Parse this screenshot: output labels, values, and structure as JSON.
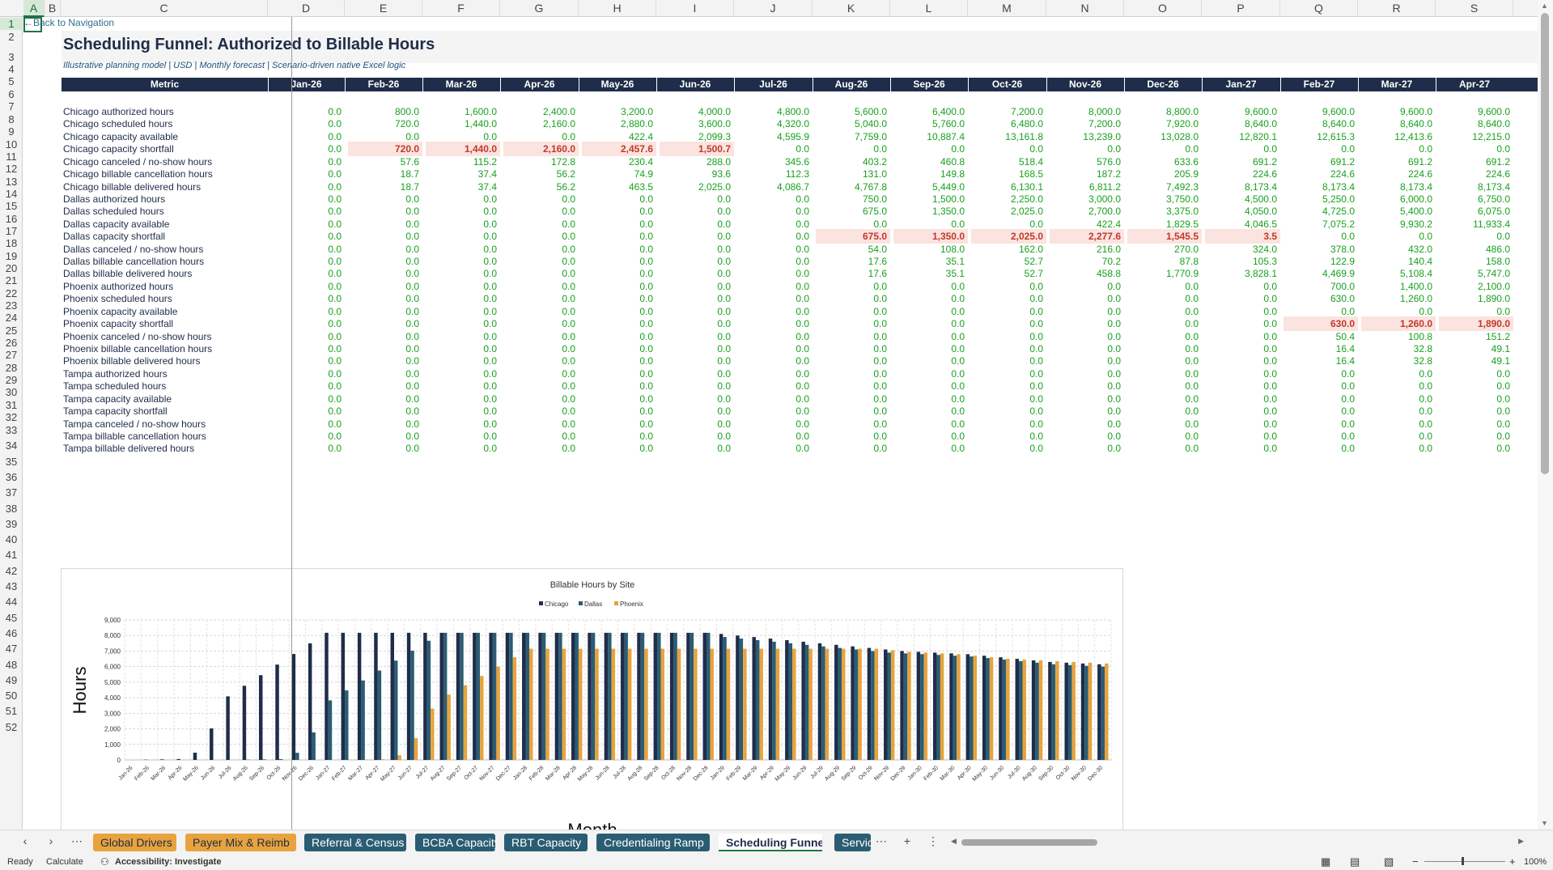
{
  "columns": [
    "A",
    "B",
    "C",
    "D",
    "E",
    "F",
    "G",
    "H",
    "I",
    "J",
    "K",
    "L",
    "M",
    "N",
    "O",
    "P",
    "Q",
    "R",
    "S"
  ],
  "back_link": "←Back to Navigation",
  "title": "Scheduling Funnel: Authorized to Billable Hours",
  "subtitle": "Illustrative planning model | USD | Monthly forecast | Scenario-driven native Excel logic",
  "table": {
    "metric_header": "Metric",
    "months": [
      "Jan-26",
      "Feb-26",
      "Mar-26",
      "Apr-26",
      "May-26",
      "Jun-26",
      "Jul-26",
      "Aug-26",
      "Sep-26",
      "Oct-26",
      "Nov-26",
      "Dec-26",
      "Jan-27",
      "Feb-27",
      "Mar-27",
      "Apr-27"
    ],
    "rows": [
      {
        "label": "Chicago authorized hours",
        "values": [
          "0.0",
          "800.0",
          "1,600.0",
          "2,400.0",
          "3,200.0",
          "4,000.0",
          "4,800.0",
          "5,600.0",
          "6,400.0",
          "7,200.0",
          "8,000.0",
          "8,800.0",
          "9,600.0",
          "9,600.0",
          "9,600.0",
          "9,600.0"
        ],
        "highlight": []
      },
      {
        "label": "Chicago scheduled hours",
        "values": [
          "0.0",
          "720.0",
          "1,440.0",
          "2,160.0",
          "2,880.0",
          "3,600.0",
          "4,320.0",
          "5,040.0",
          "5,760.0",
          "6,480.0",
          "7,200.0",
          "7,920.0",
          "8,640.0",
          "8,640.0",
          "8,640.0",
          "8,640.0"
        ],
        "highlight": []
      },
      {
        "label": "Chicago capacity available",
        "values": [
          "0.0",
          "0.0",
          "0.0",
          "0.0",
          "422.4",
          "2,099.3",
          "4,595.9",
          "7,759.0",
          "10,887.4",
          "13,161.8",
          "13,239.0",
          "13,028.0",
          "12,820.1",
          "12,615.3",
          "12,413.6",
          "12,215.0"
        ],
        "highlight": []
      },
      {
        "label": "Chicago capacity shortfall",
        "values": [
          "0.0",
          "720.0",
          "1,440.0",
          "2,160.0",
          "2,457.6",
          "1,500.7",
          "0.0",
          "0.0",
          "0.0",
          "0.0",
          "0.0",
          "0.0",
          "0.0",
          "0.0",
          "0.0",
          "0.0"
        ],
        "highlight": [
          1,
          2,
          3,
          4,
          5
        ]
      },
      {
        "label": "Chicago canceled / no-show hours",
        "values": [
          "0.0",
          "57.6",
          "115.2",
          "172.8",
          "230.4",
          "288.0",
          "345.6",
          "403.2",
          "460.8",
          "518.4",
          "576.0",
          "633.6",
          "691.2",
          "691.2",
          "691.2",
          "691.2"
        ],
        "highlight": []
      },
      {
        "label": "Chicago billable cancellation hours",
        "values": [
          "0.0",
          "18.7",
          "37.4",
          "56.2",
          "74.9",
          "93.6",
          "112.3",
          "131.0",
          "149.8",
          "168.5",
          "187.2",
          "205.9",
          "224.6",
          "224.6",
          "224.6",
          "224.6"
        ],
        "highlight": []
      },
      {
        "label": "Chicago billable delivered hours",
        "values": [
          "0.0",
          "18.7",
          "37.4",
          "56.2",
          "463.5",
          "2,025.0",
          "4,086.7",
          "4,767.8",
          "5,449.0",
          "6,130.1",
          "6,811.2",
          "7,492.3",
          "8,173.4",
          "8,173.4",
          "8,173.4",
          "8,173.4"
        ],
        "highlight": []
      },
      {
        "label": "Dallas authorized hours",
        "values": [
          "0.0",
          "0.0",
          "0.0",
          "0.0",
          "0.0",
          "0.0",
          "0.0",
          "750.0",
          "1,500.0",
          "2,250.0",
          "3,000.0",
          "3,750.0",
          "4,500.0",
          "5,250.0",
          "6,000.0",
          "6,750.0"
        ],
        "highlight": []
      },
      {
        "label": "Dallas scheduled hours",
        "values": [
          "0.0",
          "0.0",
          "0.0",
          "0.0",
          "0.0",
          "0.0",
          "0.0",
          "675.0",
          "1,350.0",
          "2,025.0",
          "2,700.0",
          "3,375.0",
          "4,050.0",
          "4,725.0",
          "5,400.0",
          "6,075.0"
        ],
        "highlight": []
      },
      {
        "label": "Dallas capacity available",
        "values": [
          "0.0",
          "0.0",
          "0.0",
          "0.0",
          "0.0",
          "0.0",
          "0.0",
          "0.0",
          "0.0",
          "0.0",
          "422.4",
          "1,829.5",
          "4,046.5",
          "7,075.2",
          "9,930.2",
          "11,933.4"
        ],
        "highlight": []
      },
      {
        "label": "Dallas capacity shortfall",
        "values": [
          "0.0",
          "0.0",
          "0.0",
          "0.0",
          "0.0",
          "0.0",
          "0.0",
          "675.0",
          "1,350.0",
          "2,025.0",
          "2,277.6",
          "1,545.5",
          "3.5",
          "0.0",
          "0.0",
          "0.0"
        ],
        "highlight": [
          7,
          8,
          9,
          10,
          11,
          12
        ]
      },
      {
        "label": "Dallas canceled / no-show hours",
        "values": [
          "0.0",
          "0.0",
          "0.0",
          "0.0",
          "0.0",
          "0.0",
          "0.0",
          "54.0",
          "108.0",
          "162.0",
          "216.0",
          "270.0",
          "324.0",
          "378.0",
          "432.0",
          "486.0"
        ],
        "highlight": []
      },
      {
        "label": "Dallas billable cancellation hours",
        "values": [
          "0.0",
          "0.0",
          "0.0",
          "0.0",
          "0.0",
          "0.0",
          "0.0",
          "17.6",
          "35.1",
          "52.7",
          "70.2",
          "87.8",
          "105.3",
          "122.9",
          "140.4",
          "158.0"
        ],
        "highlight": []
      },
      {
        "label": "Dallas billable delivered hours",
        "values": [
          "0.0",
          "0.0",
          "0.0",
          "0.0",
          "0.0",
          "0.0",
          "0.0",
          "17.6",
          "35.1",
          "52.7",
          "458.8",
          "1,770.9",
          "3,828.1",
          "4,469.9",
          "5,108.4",
          "5,747.0"
        ],
        "highlight": []
      },
      {
        "label": "Phoenix authorized hours",
        "values": [
          "0.0",
          "0.0",
          "0.0",
          "0.0",
          "0.0",
          "0.0",
          "0.0",
          "0.0",
          "0.0",
          "0.0",
          "0.0",
          "0.0",
          "0.0",
          "700.0",
          "1,400.0",
          "2,100.0"
        ],
        "highlight": []
      },
      {
        "label": "Phoenix scheduled hours",
        "values": [
          "0.0",
          "0.0",
          "0.0",
          "0.0",
          "0.0",
          "0.0",
          "0.0",
          "0.0",
          "0.0",
          "0.0",
          "0.0",
          "0.0",
          "0.0",
          "630.0",
          "1,260.0",
          "1,890.0"
        ],
        "highlight": []
      },
      {
        "label": "Phoenix capacity available",
        "values": [
          "0.0",
          "0.0",
          "0.0",
          "0.0",
          "0.0",
          "0.0",
          "0.0",
          "0.0",
          "0.0",
          "0.0",
          "0.0",
          "0.0",
          "0.0",
          "0.0",
          "0.0",
          "0.0"
        ],
        "highlight": []
      },
      {
        "label": "Phoenix capacity shortfall",
        "values": [
          "0.0",
          "0.0",
          "0.0",
          "0.0",
          "0.0",
          "0.0",
          "0.0",
          "0.0",
          "0.0",
          "0.0",
          "0.0",
          "0.0",
          "0.0",
          "630.0",
          "1,260.0",
          "1,890.0"
        ],
        "highlight": [
          13,
          14,
          15
        ]
      },
      {
        "label": "Phoenix canceled / no-show hours",
        "values": [
          "0.0",
          "0.0",
          "0.0",
          "0.0",
          "0.0",
          "0.0",
          "0.0",
          "0.0",
          "0.0",
          "0.0",
          "0.0",
          "0.0",
          "0.0",
          "50.4",
          "100.8",
          "151.2"
        ],
        "highlight": []
      },
      {
        "label": "Phoenix billable cancellation hours",
        "values": [
          "0.0",
          "0.0",
          "0.0",
          "0.0",
          "0.0",
          "0.0",
          "0.0",
          "0.0",
          "0.0",
          "0.0",
          "0.0",
          "0.0",
          "0.0",
          "16.4",
          "32.8",
          "49.1"
        ],
        "highlight": []
      },
      {
        "label": "Phoenix billable delivered hours",
        "values": [
          "0.0",
          "0.0",
          "0.0",
          "0.0",
          "0.0",
          "0.0",
          "0.0",
          "0.0",
          "0.0",
          "0.0",
          "0.0",
          "0.0",
          "0.0",
          "16.4",
          "32.8",
          "49.1"
        ],
        "highlight": []
      },
      {
        "label": "Tampa authorized hours",
        "values": [
          "0.0",
          "0.0",
          "0.0",
          "0.0",
          "0.0",
          "0.0",
          "0.0",
          "0.0",
          "0.0",
          "0.0",
          "0.0",
          "0.0",
          "0.0",
          "0.0",
          "0.0",
          "0.0"
        ],
        "highlight": []
      },
      {
        "label": "Tampa scheduled hours",
        "values": [
          "0.0",
          "0.0",
          "0.0",
          "0.0",
          "0.0",
          "0.0",
          "0.0",
          "0.0",
          "0.0",
          "0.0",
          "0.0",
          "0.0",
          "0.0",
          "0.0",
          "0.0",
          "0.0"
        ],
        "highlight": []
      },
      {
        "label": "Tampa capacity available",
        "values": [
          "0.0",
          "0.0",
          "0.0",
          "0.0",
          "0.0",
          "0.0",
          "0.0",
          "0.0",
          "0.0",
          "0.0",
          "0.0",
          "0.0",
          "0.0",
          "0.0",
          "0.0",
          "0.0"
        ],
        "highlight": []
      },
      {
        "label": "Tampa capacity shortfall",
        "values": [
          "0.0",
          "0.0",
          "0.0",
          "0.0",
          "0.0",
          "0.0",
          "0.0",
          "0.0",
          "0.0",
          "0.0",
          "0.0",
          "0.0",
          "0.0",
          "0.0",
          "0.0",
          "0.0"
        ],
        "highlight": []
      },
      {
        "label": "Tampa canceled / no-show hours",
        "values": [
          "0.0",
          "0.0",
          "0.0",
          "0.0",
          "0.0",
          "0.0",
          "0.0",
          "0.0",
          "0.0",
          "0.0",
          "0.0",
          "0.0",
          "0.0",
          "0.0",
          "0.0",
          "0.0"
        ],
        "highlight": []
      },
      {
        "label": "Tampa billable cancellation hours",
        "values": [
          "0.0",
          "0.0",
          "0.0",
          "0.0",
          "0.0",
          "0.0",
          "0.0",
          "0.0",
          "0.0",
          "0.0",
          "0.0",
          "0.0",
          "0.0",
          "0.0",
          "0.0",
          "0.0"
        ],
        "highlight": []
      },
      {
        "label": "Tampa billable delivered hours",
        "values": [
          "0.0",
          "0.0",
          "0.0",
          "0.0",
          "0.0",
          "0.0",
          "0.0",
          "0.0",
          "0.0",
          "0.0",
          "0.0",
          "0.0",
          "0.0",
          "0.0",
          "0.0",
          "0.0"
        ],
        "highlight": []
      }
    ]
  },
  "chart_data": {
    "type": "bar",
    "title": "Billable Hours by Site",
    "xlabel": "Month",
    "ylabel": "Hours",
    "ylim": [
      0,
      9000
    ],
    "yticks": [
      "0",
      "1,000",
      "2,000",
      "3,000",
      "4,000",
      "5,000",
      "6,000",
      "7,000",
      "8,000",
      "9,000"
    ],
    "grid": true,
    "legend": "top",
    "categories": [
      "Jan-26",
      "Feb-26",
      "Mar-26",
      "Apr-26",
      "May-26",
      "Jun-26",
      "Jul-26",
      "Aug-26",
      "Sep-26",
      "Oct-26",
      "Nov-26",
      "Dec-26",
      "Jan-27",
      "Feb-27",
      "Mar-27",
      "Apr-27",
      "May-27",
      "Jun-27",
      "Jul-27",
      "Aug-27",
      "Sep-27",
      "Oct-27",
      "Nov-27",
      "Dec-27",
      "Jan-28",
      "Feb-28",
      "Mar-28",
      "Apr-28",
      "May-28",
      "Jun-28",
      "Jul-28",
      "Aug-28",
      "Sep-28",
      "Oct-28",
      "Nov-28",
      "Dec-28",
      "Jan-29",
      "Feb-29",
      "Mar-29",
      "Apr-29",
      "May-29",
      "Jun-29",
      "Jul-29",
      "Aug-29",
      "Sep-29",
      "Oct-29",
      "Nov-29",
      "Dec-29",
      "Jan-30",
      "Feb-30",
      "Mar-30",
      "Apr-30",
      "May-30",
      "Jun-30",
      "Jul-30",
      "Aug-30",
      "Sep-30",
      "Oct-30",
      "Nov-30",
      "Dec-30"
    ],
    "series": [
      {
        "name": "Chicago",
        "color": "#1f2d4a",
        "values": [
          0,
          19,
          37,
          56,
          464,
          2025,
          4087,
          4768,
          5449,
          6130,
          6811,
          7492,
          8173,
          8173,
          8173,
          8173,
          8173,
          8173,
          8173,
          8173,
          8173,
          8173,
          8173,
          8173,
          8173,
          8173,
          8173,
          8173,
          8173,
          8173,
          8173,
          8173,
          8173,
          8173,
          8173,
          8173,
          8100,
          8000,
          7900,
          7800,
          7700,
          7600,
          7500,
          7400,
          7300,
          7200,
          7100,
          7000,
          6950,
          6900,
          6850,
          6800,
          6700,
          6600,
          6500,
          6400,
          6300,
          6250,
          6200,
          6150
        ]
      },
      {
        "name": "Dallas",
        "color": "#2a5d73",
        "values": [
          0,
          0,
          0,
          0,
          0,
          0,
          0,
          18,
          35,
          53,
          459,
          1771,
          3828,
          4470,
          5108,
          5747,
          6386,
          7024,
          7663,
          8173,
          8173,
          8173,
          8173,
          8173,
          8173,
          8173,
          8173,
          8173,
          8173,
          8173,
          8173,
          8173,
          8173,
          8173,
          8173,
          8173,
          7900,
          7800,
          7700,
          7600,
          7500,
          7400,
          7300,
          7200,
          7100,
          7000,
          6900,
          6850,
          6800,
          6750,
          6700,
          6650,
          6550,
          6450,
          6350,
          6250,
          6150,
          6100,
          6050,
          6000
        ]
      },
      {
        "name": "Phoenix",
        "color": "#e8a33d",
        "values": [
          0,
          0,
          0,
          0,
          0,
          0,
          0,
          0,
          0,
          0,
          0,
          0,
          0,
          16,
          33,
          49,
          300,
          1400,
          3300,
          4200,
          4800,
          5400,
          6000,
          6600,
          7150,
          7150,
          7150,
          7150,
          7150,
          7150,
          7150,
          7150,
          7150,
          7150,
          7150,
          7150,
          7150,
          7150,
          7150,
          7150,
          7150,
          7150,
          7150,
          7150,
          7150,
          7150,
          7050,
          6950,
          6900,
          6850,
          6800,
          6700,
          6600,
          6500,
          6450,
          6400,
          6350,
          6300,
          6250,
          6200
        ]
      }
    ]
  },
  "tabs": [
    {
      "label": "Global Drivers",
      "style": "orange"
    },
    {
      "label": "Payer Mix & Reimb",
      "style": "orange"
    },
    {
      "label": "Referral & Census",
      "style": "teal"
    },
    {
      "label": "BCBA Capacity",
      "style": "teal"
    },
    {
      "label": "RBT Capacity",
      "style": "teal"
    },
    {
      "label": "Credentialing Ramp",
      "style": "teal"
    },
    {
      "label": "Scheduling Funnel",
      "style": "active"
    },
    {
      "label": "Servic",
      "style": "teal"
    }
  ],
  "status": {
    "ready": "Ready",
    "calculate": "Calculate",
    "accessibility": "Accessibility: Investigate",
    "zoom": "100%"
  }
}
